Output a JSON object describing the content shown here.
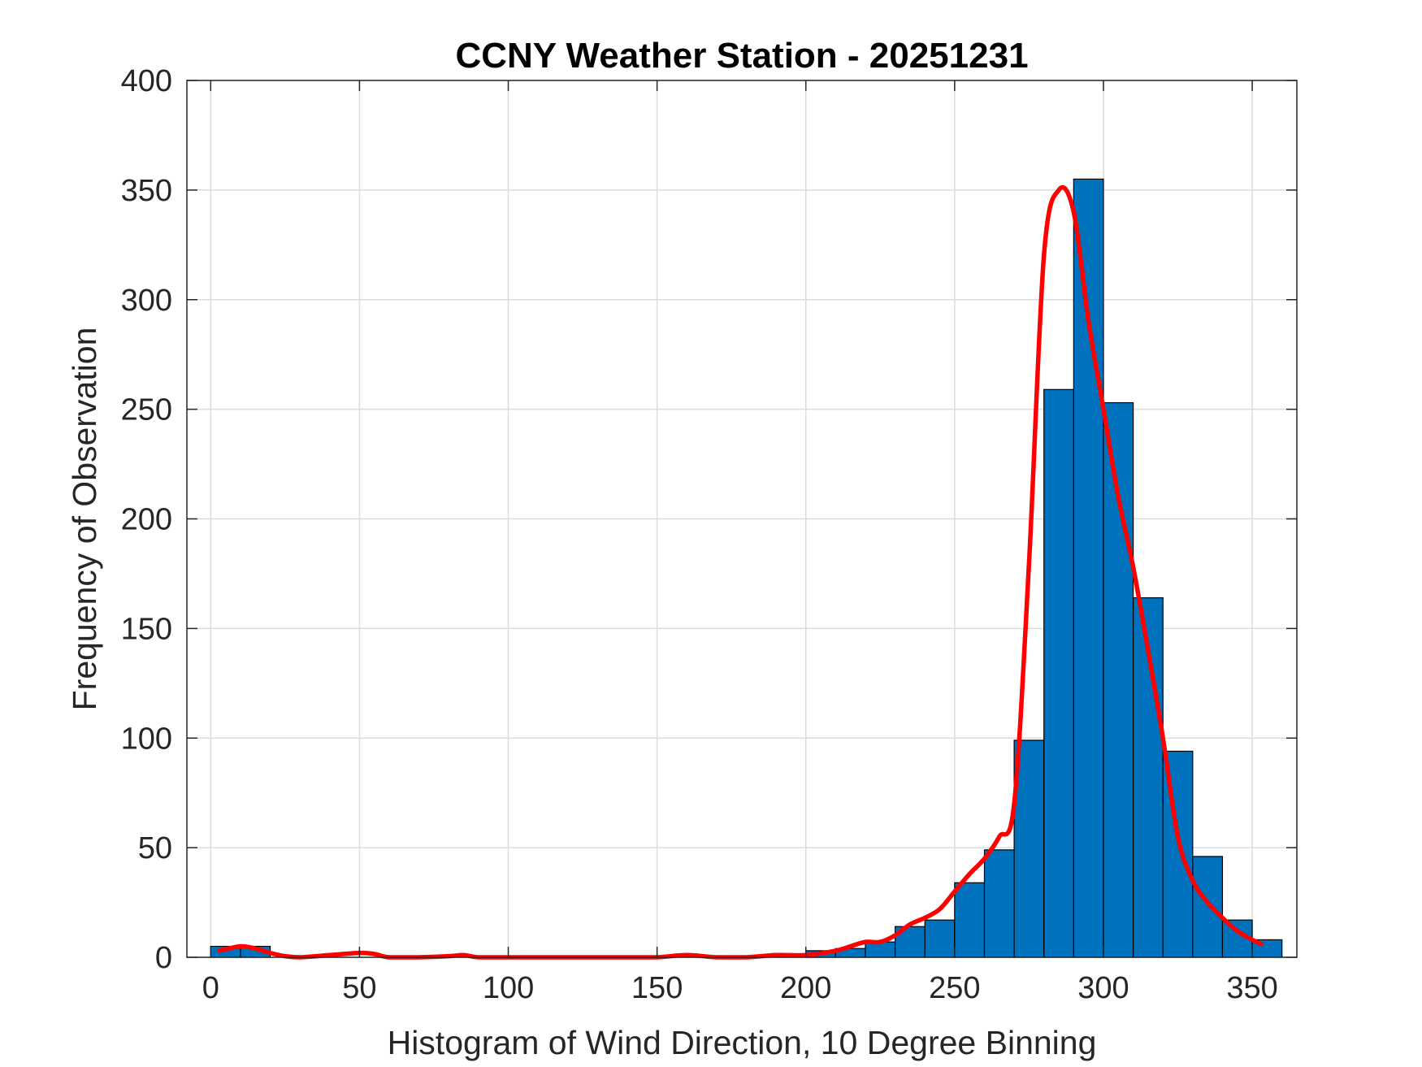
{
  "chart_data": {
    "type": "bar",
    "title": "CCNY Weather Station - 20251231",
    "xlabel": "Histogram of Wind Direction, 10 Degree Binning",
    "ylabel": "Frequency of Observation",
    "xlim": [
      -8,
      365
    ],
    "ylim": [
      0,
      400
    ],
    "xticks": [
      0,
      50,
      100,
      150,
      200,
      250,
      300,
      350
    ],
    "yticks": [
      0,
      50,
      100,
      150,
      200,
      250,
      300,
      350,
      400
    ],
    "grid": true,
    "bin_width": 10,
    "series": [
      {
        "kind": "histogram",
        "bin_edges": [
          0,
          10,
          20,
          30,
          40,
          50,
          60,
          70,
          80,
          90,
          100,
          110,
          120,
          130,
          140,
          150,
          160,
          170,
          180,
          190,
          200,
          210,
          220,
          230,
          240,
          250,
          260,
          270,
          280,
          290,
          300,
          310,
          320,
          330,
          340,
          350,
          360
        ],
        "values": [
          5,
          5,
          0,
          0,
          0,
          0,
          0,
          0,
          0,
          0,
          0,
          0,
          0,
          0,
          0,
          0,
          0,
          0,
          0,
          0,
          3,
          4,
          7,
          14,
          17,
          34,
          49,
          99,
          259,
          355,
          253,
          164,
          94,
          46,
          17,
          8
        ],
        "color": "#0072BD",
        "edge_color": "#000000"
      },
      {
        "kind": "line",
        "color": "#FF0000",
        "x": [
          3,
          10,
          15,
          20,
          25,
          30,
          40,
          50,
          55,
          60,
          70,
          80,
          85,
          90,
          100,
          110,
          120,
          130,
          140,
          150,
          160,
          170,
          180,
          190,
          200,
          210,
          215,
          220,
          225,
          230,
          235,
          240,
          245,
          250,
          255,
          260,
          265,
          270,
          275,
          280,
          285,
          290,
          295,
          300,
          305,
          310,
          315,
          320,
          325,
          330,
          335,
          340,
          345,
          350,
          353
        ],
        "y": [
          3,
          5,
          4,
          2,
          0.5,
          0,
          1,
          2,
          1.5,
          0,
          0,
          0.5,
          1,
          0,
          0,
          0,
          0,
          0,
          0,
          0,
          1,
          0,
          0,
          1,
          1,
          3,
          5,
          7,
          7,
          10,
          15,
          18,
          22,
          30,
          38,
          45,
          55,
          70,
          180,
          320,
          350,
          340,
          290,
          250,
          210,
          178,
          140,
          100,
          55,
          35,
          25,
          18,
          12,
          8,
          6
        ]
      }
    ]
  }
}
